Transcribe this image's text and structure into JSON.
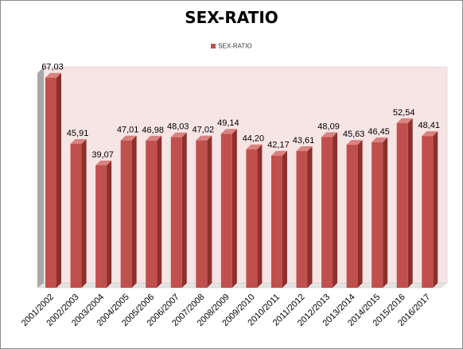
{
  "chart_data": {
    "type": "bar",
    "title": "SEX-RATIO",
    "legend_position": "top",
    "series": [
      {
        "name": "SEX-RATIO",
        "color": "#c0504d",
        "values": [
          67.03,
          45.91,
          39.07,
          47.01,
          46.98,
          48.03,
          47.02,
          49.14,
          44.2,
          42.17,
          43.61,
          48.09,
          45.63,
          46.45,
          52.54,
          48.41
        ]
      }
    ],
    "categories": [
      "2001/2002",
      "2002/2003",
      "2003/2004",
      "2004/2005",
      "2005/2006",
      "2006/2007",
      "2007/2008",
      "2008/2009",
      "2009/2010",
      "2010/2011",
      "2011/2012",
      "2012/2013",
      "2013/2014",
      "2014/2015",
      "2015/2016",
      "2016/2017"
    ],
    "data_labels": [
      "67,03",
      "45,91",
      "39,07",
      "47,01",
      "46,98",
      "48,03",
      "47,02",
      "49,14",
      "44,20",
      "42,17",
      "43,61",
      "48,09",
      "45,63",
      "46,45",
      "52,54",
      "48,41"
    ],
    "ylim": [
      0,
      70
    ],
    "grid": false,
    "colors": {
      "bar_front": "#c0504d",
      "bar_side": "#8e2f2c",
      "bar_top": "#d9827f",
      "back_wall": "#f6e5e4",
      "side_wall": "#a8a8a8"
    }
  }
}
